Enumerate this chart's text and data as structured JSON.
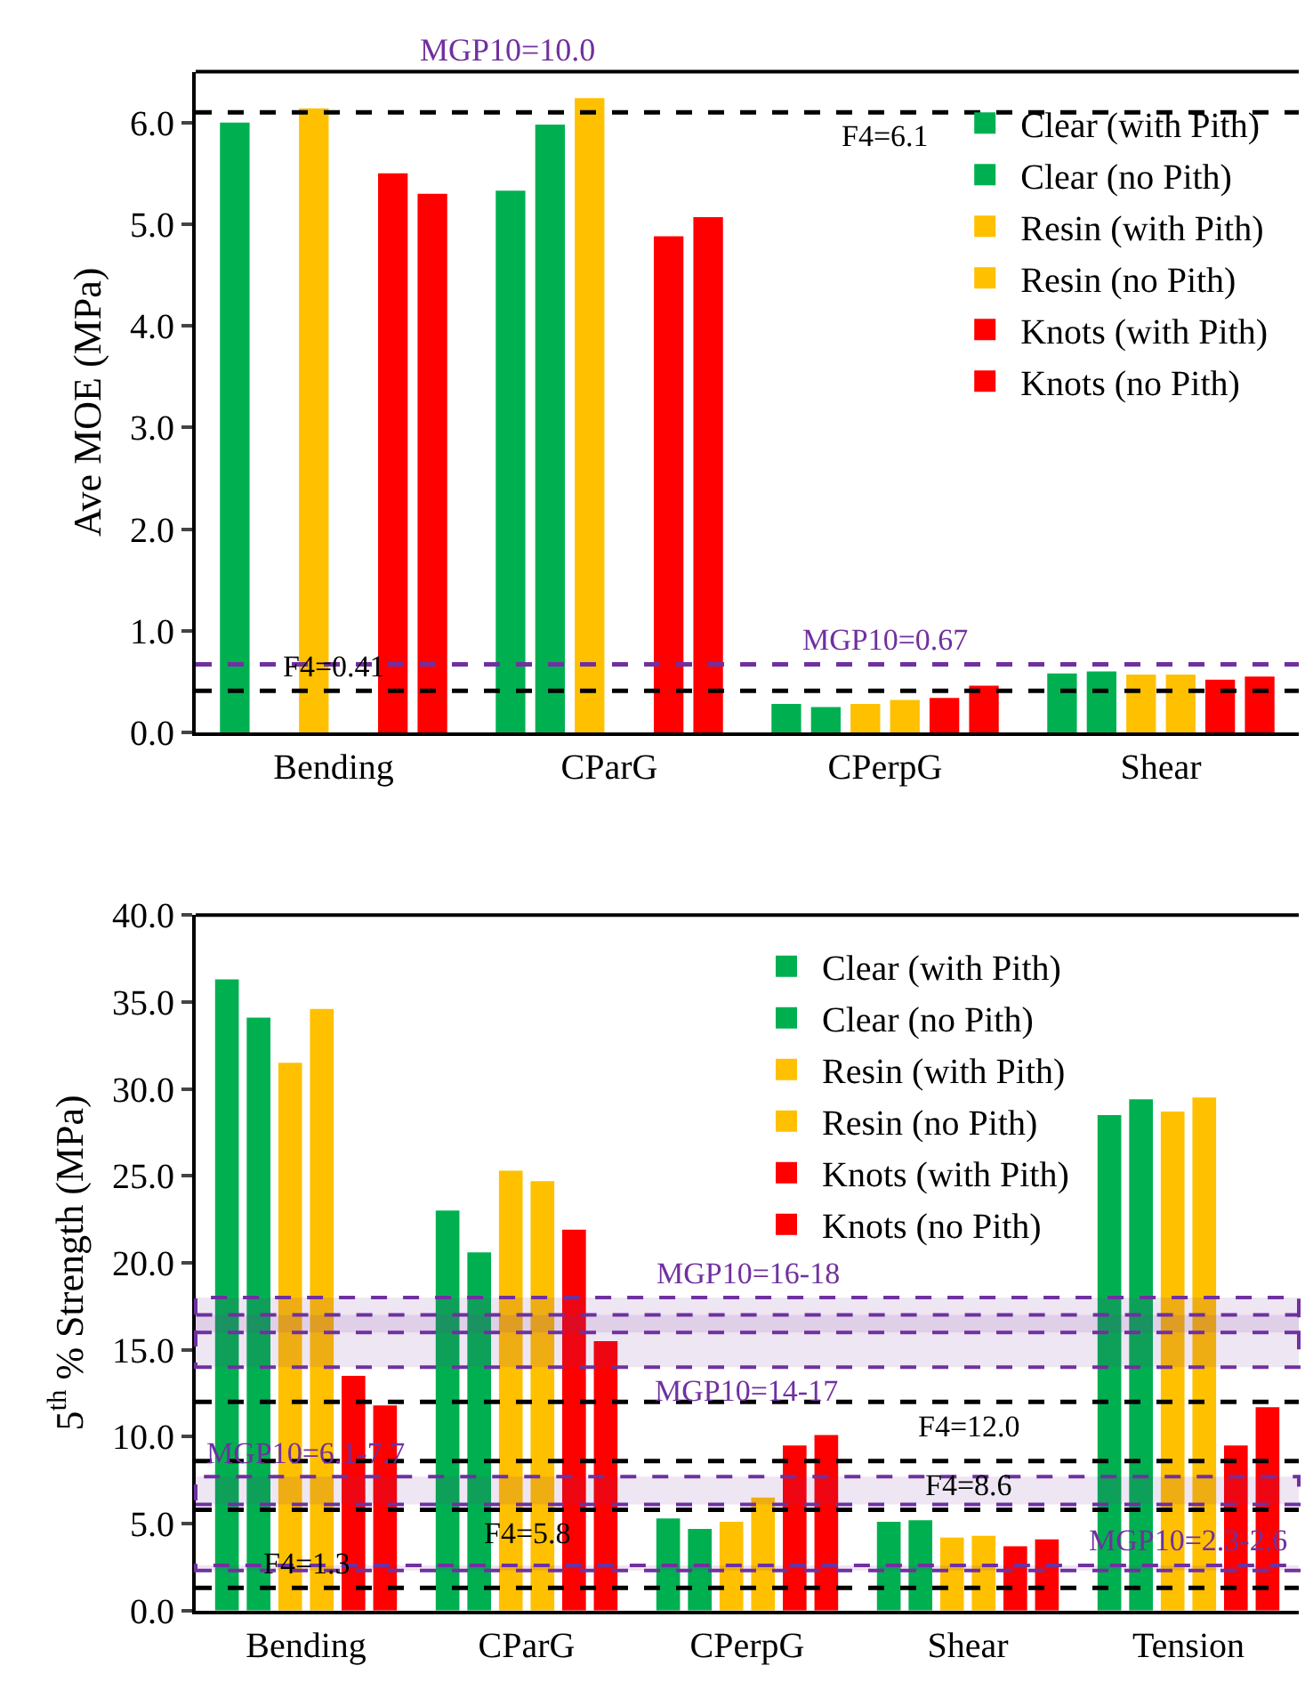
{
  "chart_data": [
    {
      "type": "bar",
      "ylabel": "Ave MOE (MPa)",
      "categories": [
        "Bending",
        "CParG",
        "CPerpG",
        "Shear"
      ],
      "ylim": [
        0,
        6.5
      ],
      "yticks": [
        {
          "value": 0,
          "label": "0.0"
        },
        {
          "value": 1,
          "label": "1.0"
        },
        {
          "value": 2,
          "label": "2.0"
        },
        {
          "value": 3,
          "label": "3.0"
        },
        {
          "value": 4,
          "label": "4.0"
        },
        {
          "value": 5,
          "label": "5.0"
        },
        {
          "value": 6,
          "label": "6.0"
        }
      ],
      "legend": "top right",
      "series": [
        {
          "name": "Clear (with Pith)",
          "color": "#00b050",
          "values": [
            6.0,
            5.33,
            0.28,
            0.58
          ]
        },
        {
          "name": "Clear (no Pith)",
          "color": "#00b050",
          "values": [
            null,
            5.98,
            0.25,
            0.6
          ]
        },
        {
          "name": "Resin (with Pith)",
          "color": "#ffc000",
          "values": [
            6.14,
            6.24,
            0.28,
            0.57
          ]
        },
        {
          "name": "Resin (no Pith)",
          "color": "#ffc000",
          "values": [
            null,
            null,
            0.32,
            0.57
          ]
        },
        {
          "name": "Knots (with Pith)",
          "color": "#ff0000",
          "values": [
            5.5,
            4.88,
            0.34,
            0.52
          ]
        },
        {
          "name": "Knots (no Pith)",
          "color": "#ff0000",
          "values": [
            5.3,
            5.07,
            0.46,
            0.55
          ]
        }
      ],
      "ref_lines": [
        {
          "axis": "y",
          "value": 6.1,
          "label": "F4=6.1",
          "color": "#000000",
          "line_style": "dashed"
        },
        {
          "axis": "y",
          "value": 0.67,
          "label": "MGP10=0.67",
          "color": "#7030a0",
          "line_style": "dashed"
        },
        {
          "axis": "y",
          "value": 0.41,
          "label": "F4=0.41",
          "color": "#000000",
          "line_style": "dashed"
        }
      ],
      "annotations": [
        "MGP10=10.0"
      ]
    },
    {
      "type": "bar",
      "ylabel": "5$^{th}$ % Strength (MPa)",
      "categories": [
        "Bending",
        "CParG",
        "CPerpG",
        "Shear",
        "Tension"
      ],
      "ylim": [
        0,
        40
      ],
      "yticks": [
        {
          "value": 0,
          "label": "0.0"
        },
        {
          "value": 5,
          "label": "5.0"
        },
        {
          "value": 10,
          "label": "10.0"
        },
        {
          "value": 15,
          "label": "15.0"
        },
        {
          "value": 20,
          "label": "20.0"
        },
        {
          "value": 25,
          "label": "25.0"
        },
        {
          "value": 30,
          "label": "30.0"
        },
        {
          "value": 35,
          "label": "35.0"
        },
        {
          "value": 40,
          "label": "40.0"
        }
      ],
      "legend": "top right",
      "series": [
        {
          "name": "Clear (with Pith)",
          "color": "#00b050",
          "values": [
            36.3,
            23.0,
            5.3,
            5.1,
            28.5
          ]
        },
        {
          "name": "Clear (no Pith)",
          "color": "#00b050",
          "values": [
            34.1,
            20.6,
            4.7,
            5.2,
            29.4
          ]
        },
        {
          "name": "Resin (with Pith)",
          "color": "#ffc000",
          "values": [
            31.5,
            25.3,
            5.1,
            4.2,
            28.7
          ]
        },
        {
          "name": "Resin (no Pith)",
          "color": "#ffc000",
          "values": [
            34.6,
            24.7,
            6.5,
            4.3,
            29.5
          ]
        },
        {
          "name": "Knots (with Pith)",
          "color": "#ff0000",
          "values": [
            13.5,
            21.9,
            9.5,
            3.7,
            9.5
          ]
        },
        {
          "name": "Knots (no Pith)",
          "color": "#ff0000",
          "values": [
            11.8,
            15.5,
            10.1,
            4.1,
            11.7
          ]
        }
      ],
      "ref_lines": [
        {
          "axis": "y",
          "value": 12.0,
          "label": "F4=12.0",
          "color": "#000000",
          "line_style": "dashed"
        },
        {
          "axis": "y",
          "value": 8.6,
          "label": "F4=8.6",
          "color": "#000000",
          "line_style": "dashed"
        },
        {
          "axis": "y",
          "value": 1.3,
          "label": "F4=1.3",
          "color": "#000000",
          "line_style": "dashed"
        },
        {
          "axis": "y",
          "value": 5.8,
          "label": "F4=5.8",
          "color": "#000000",
          "line_style": "dashed"
        }
      ],
      "bands": [
        {
          "axis": "y",
          "from": 14,
          "to": 17,
          "label": "MGP10=14-17",
          "color": "#7030a0"
        },
        {
          "axis": "y",
          "from": 16,
          "to": 18,
          "label": "MGP10=16-18",
          "color": "#7030a0"
        },
        {
          "axis": "y",
          "from": 2.3,
          "to": 2.6,
          "label": "MGP10=2.3-2.6",
          "color": "#7030a0"
        },
        {
          "axis": "y",
          "from": 6.1,
          "to": 7.7,
          "label": "MGP10=6.1-7.7",
          "color": "#7030a0"
        }
      ]
    }
  ]
}
